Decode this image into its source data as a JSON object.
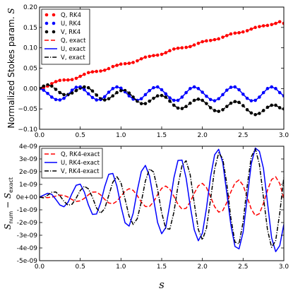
{
  "chart_data": [
    {
      "type": "line",
      "ylabel": "Normalized Stokes param. S",
      "xlim": [
        0.0,
        3.0
      ],
      "ylim": [
        -0.1,
        0.2
      ],
      "x_ticks": [
        "0.0",
        "0.5",
        "1.0",
        "1.5",
        "2.0",
        "2.5",
        "3.0"
      ],
      "y_ticks": [
        "−0.10",
        "−0.05",
        "0.00",
        "0.05",
        "0.10",
        "0.15",
        "0.20"
      ],
      "legend_position": "top-left",
      "grid": false,
      "series": [
        {
          "name": "Q, RK4",
          "style": "dots",
          "color": "#ff0000",
          "x": [
            0.0,
            0.05,
            0.1,
            0.15,
            0.2,
            0.25,
            0.3,
            0.35,
            0.4,
            0.45,
            0.5,
            0.55,
            0.6,
            0.65,
            0.7,
            0.75,
            0.8,
            0.85,
            0.9,
            0.95,
            1.0,
            1.05,
            1.1,
            1.15,
            1.2,
            1.25,
            1.3,
            1.35,
            1.4,
            1.45,
            1.5,
            1.55,
            1.6,
            1.65,
            1.7,
            1.75,
            1.8,
            1.85,
            1.9,
            1.95,
            2.0,
            2.05,
            2.1,
            2.15,
            2.2,
            2.25,
            2.3,
            2.35,
            2.4,
            2.45,
            2.5,
            2.55,
            2.6,
            2.65,
            2.7,
            2.75,
            2.8,
            2.85,
            2.9,
            2.95,
            3.0
          ],
          "y": [
            0.0,
            0.002,
            0.006,
            0.012,
            0.017,
            0.02,
            0.021,
            0.021,
            0.022,
            0.025,
            0.03,
            0.035,
            0.039,
            0.041,
            0.042,
            0.043,
            0.045,
            0.049,
            0.054,
            0.057,
            0.06,
            0.061,
            0.062,
            0.064,
            0.068,
            0.073,
            0.077,
            0.079,
            0.081,
            0.082,
            0.084,
            0.088,
            0.093,
            0.097,
            0.099,
            0.1,
            0.101,
            0.103,
            0.107,
            0.111,
            0.115,
            0.117,
            0.118,
            0.12,
            0.122,
            0.126,
            0.13,
            0.134,
            0.136,
            0.137,
            0.139,
            0.142,
            0.146,
            0.15,
            0.152,
            0.154,
            0.155,
            0.157,
            0.16,
            0.164,
            0.16
          ]
        },
        {
          "name": "U, RK4",
          "style": "dots",
          "color": "#0000ff",
          "x": [
            0.0,
            0.05,
            0.1,
            0.15,
            0.2,
            0.25,
            0.3,
            0.35,
            0.4,
            0.45,
            0.5,
            0.55,
            0.6,
            0.65,
            0.7,
            0.75,
            0.8,
            0.85,
            0.9,
            0.95,
            1.0,
            1.05,
            1.1,
            1.15,
            1.2,
            1.25,
            1.3,
            1.35,
            1.4,
            1.45,
            1.5,
            1.55,
            1.6,
            1.65,
            1.7,
            1.75,
            1.8,
            1.85,
            1.9,
            1.95,
            2.0,
            2.05,
            2.1,
            2.15,
            2.2,
            2.25,
            2.3,
            2.35,
            2.4,
            2.45,
            2.5,
            2.55,
            2.6,
            2.65,
            2.7,
            2.75,
            2.8,
            2.85,
            2.9,
            2.95,
            3.0
          ],
          "y": [
            0.0,
            -0.004,
            -0.012,
            -0.021,
            -0.027,
            -0.028,
            -0.024,
            -0.015,
            -0.004,
            0.003,
            0.004,
            -0.003,
            -0.013,
            -0.022,
            -0.028,
            -0.027,
            -0.02,
            -0.009,
            0.0,
            0.004,
            0.001,
            -0.008,
            -0.018,
            -0.026,
            -0.029,
            -0.025,
            -0.015,
            -0.005,
            0.002,
            0.004,
            -0.003,
            -0.013,
            -0.023,
            -0.029,
            -0.029,
            -0.021,
            -0.01,
            0.0,
            0.004,
            0.0,
            -0.009,
            -0.019,
            -0.027,
            -0.03,
            -0.025,
            -0.015,
            -0.004,
            0.003,
            0.004,
            -0.003,
            -0.014,
            -0.024,
            -0.03,
            -0.029,
            -0.021,
            -0.01,
            0.0,
            0.004,
            0.0,
            -0.01,
            -0.018
          ]
        },
        {
          "name": "V, RK4",
          "style": "dots",
          "color": "#000000",
          "x": [
            0.0,
            0.05,
            0.1,
            0.15,
            0.2,
            0.25,
            0.3,
            0.35,
            0.4,
            0.45,
            0.5,
            0.55,
            0.6,
            0.65,
            0.7,
            0.75,
            0.8,
            0.85,
            0.9,
            0.95,
            1.0,
            1.05,
            1.1,
            1.15,
            1.2,
            1.25,
            1.3,
            1.35,
            1.4,
            1.45,
            1.5,
            1.55,
            1.6,
            1.65,
            1.7,
            1.75,
            1.8,
            1.85,
            1.9,
            1.95,
            2.0,
            2.05,
            2.1,
            2.15,
            2.2,
            2.25,
            2.3,
            2.35,
            2.4,
            2.45,
            2.5,
            2.55,
            2.6,
            2.65,
            2.7,
            2.75,
            2.8,
            2.85,
            2.9,
            2.95,
            3.0
          ],
          "y": [
            0.0,
            0.006,
            0.009,
            0.006,
            -0.002,
            -0.01,
            -0.015,
            -0.015,
            -0.011,
            -0.005,
            0.001,
            0.004,
            0.002,
            -0.006,
            -0.016,
            -0.025,
            -0.028,
            -0.025,
            -0.018,
            -0.01,
            -0.005,
            -0.005,
            -0.011,
            -0.021,
            -0.031,
            -0.037,
            -0.037,
            -0.031,
            -0.024,
            -0.018,
            -0.017,
            -0.021,
            -0.031,
            -0.041,
            -0.048,
            -0.049,
            -0.044,
            -0.036,
            -0.029,
            -0.026,
            -0.029,
            -0.037,
            -0.047,
            -0.054,
            -0.056,
            -0.052,
            -0.044,
            -0.036,
            -0.032,
            -0.034,
            -0.042,
            -0.052,
            -0.06,
            -0.064,
            -0.061,
            -0.054,
            -0.046,
            -0.041,
            -0.041,
            -0.047,
            -0.05
          ]
        },
        {
          "name": "Q, exact",
          "style": "dashed",
          "color": "#ff0000",
          "same_as_series": 0
        },
        {
          "name": "U, exact",
          "style": "solid",
          "color": "#0000ff",
          "same_as_series": 1
        },
        {
          "name": "V, exact",
          "style": "dashdot",
          "color": "#000000",
          "same_as_series": 2
        }
      ]
    },
    {
      "type": "line",
      "xlabel": "s",
      "ylabel": "S_num − S_exact",
      "xlim": [
        0.0,
        3.0
      ],
      "ylim": [
        -5e-09,
        4e-09
      ],
      "x_ticks": [
        "0.0",
        "0.5",
        "1.0",
        "1.5",
        "2.0",
        "2.5",
        "3.0"
      ],
      "y_ticks": [
        "-5e-09",
        "-4e-09",
        "-3e-09",
        "-2e-09",
        "-1e-09",
        "0e+00",
        "1e-09",
        "2e-09",
        "3e-09",
        "4e-09"
      ],
      "legend_position": "top-left",
      "grid": false,
      "series": [
        {
          "name": "Q, RK4-exact",
          "style": "dashed",
          "color": "#ff0000",
          "x": [
            0.0,
            0.05,
            0.1,
            0.15,
            0.2,
            0.25,
            0.3,
            0.35,
            0.4,
            0.45,
            0.5,
            0.55,
            0.6,
            0.65,
            0.7,
            0.75,
            0.8,
            0.85,
            0.9,
            0.95,
            1.0,
            1.05,
            1.1,
            1.15,
            1.2,
            1.25,
            1.3,
            1.35,
            1.4,
            1.45,
            1.5,
            1.55,
            1.6,
            1.65,
            1.7,
            1.75,
            1.8,
            1.85,
            1.9,
            1.95,
            2.0,
            2.05,
            2.1,
            2.15,
            2.2,
            2.25,
            2.3,
            2.35,
            2.4,
            2.45,
            2.5,
            2.55,
            2.6,
            2.65,
            2.7,
            2.75,
            2.8,
            2.85,
            2.9,
            2.95,
            3.0
          ],
          "y": [
            0.0,
            -2e-11,
            -4e-11,
            0.0,
            8e-11,
            1.5e-10,
            1.3e-10,
            0.0,
            -2e-10,
            -3.4e-10,
            -3e-10,
            -1e-10,
            1.8e-10,
            3.9e-10,
            4e-10,
            1.7e-10,
            -1.8e-10,
            -4.6e-10,
            -5.3e-10,
            -3.2e-10,
            6e-11,
            4.7e-10,
            6.6e-10,
            5.3e-10,
            1.2e-10,
            -3.9e-10,
            -7.4e-10,
            -7.4e-10,
            -3.7e-10,
            1.9e-10,
            6.9e-10,
            8.7e-10,
            6.3e-10,
            6e-11,
            -5.7e-10,
            -9.5e-10,
            -8.8e-10,
            -3.8e-10,
            3e-10,
            8.9e-10,
            1.08e-09,
            7.5e-10,
            3e-11,
            -7.5e-10,
            -1.18e-09,
            -1.06e-09,
            -4.3e-10,
            4.1e-10,
            1.11e-09,
            1.35e-09,
            9.3e-10,
            1e-11,
            -9.4e-10,
            -1.46e-09,
            -1.3e-09,
            -4.9e-10,
            5.6e-10,
            1.38e-09,
            1.6e-09,
            1.06e-09,
            -1e-10
          ]
        },
        {
          "name": "U, RK4-exact",
          "style": "solid",
          "color": "#0000ff",
          "x": [
            0.0,
            0.05,
            0.1,
            0.15,
            0.2,
            0.25,
            0.3,
            0.35,
            0.4,
            0.45,
            0.5,
            0.55,
            0.6,
            0.65,
            0.7,
            0.75,
            0.8,
            0.85,
            0.9,
            0.95,
            1.0,
            1.05,
            1.1,
            1.15,
            1.2,
            1.25,
            1.3,
            1.35,
            1.4,
            1.45,
            1.5,
            1.55,
            1.6,
            1.65,
            1.7,
            1.75,
            1.8,
            1.85,
            1.9,
            1.95,
            2.0,
            2.05,
            2.1,
            2.15,
            2.2,
            2.25,
            2.3,
            2.35,
            2.4,
            2.45,
            2.5,
            2.55,
            2.6,
            2.65,
            2.7,
            2.75,
            2.8,
            2.85,
            2.9,
            2.95,
            3.0
          ],
          "y": [
            0.0,
            1.5e-10,
            3e-10,
            2.2e-10,
            -1.8e-10,
            -6.2e-10,
            -7.6e-10,
            -4.1e-10,
            3e-10,
            9.3e-10,
            1.02e-09,
            4e-10,
            -6.1e-10,
            -1.36e-09,
            -1.33e-09,
            -4.6e-10,
            8.2e-10,
            1.79e-09,
            1.86e-09,
            8.7e-10,
            -7.1e-10,
            -2.02e-09,
            -2.28e-09,
            -1.27e-09,
            5.1e-10,
            2.01e-09,
            2.49e-09,
            1.67e-09,
            -1.4e-10,
            -2e-09,
            -2.88e-09,
            -2.4e-09,
            -5.7e-10,
            1.51e-09,
            2.88e-09,
            2.91e-09,
            1.5e-09,
            -6.8e-10,
            -2.57e-09,
            -3.43e-09,
            -2.84e-09,
            -8.8e-10,
            1.59e-09,
            3.32e-09,
            3.76e-09,
            2.72e-09,
            3e-10,
            -2.2e-09,
            -3.88e-09,
            -4.07e-09,
            -2.77e-09,
            -1e-10,
            2.61e-09,
            3.86e-09,
            3.6e-09,
            2.25e-09,
            -4.7e-10,
            -3.2e-09,
            -4.29e-09,
            -3.82e-09,
            -2.15e-09
          ]
        },
        {
          "name": "V, RK4-exact",
          "style": "dashdot",
          "color": "#000000",
          "x": [
            0.0,
            0.05,
            0.1,
            0.15,
            0.2,
            0.25,
            0.3,
            0.35,
            0.4,
            0.45,
            0.5,
            0.55,
            0.6,
            0.65,
            0.7,
            0.75,
            0.8,
            0.85,
            0.9,
            0.95,
            1.0,
            1.05,
            1.1,
            1.15,
            1.2,
            1.25,
            1.3,
            1.35,
            1.4,
            1.45,
            1.5,
            1.55,
            1.6,
            1.65,
            1.7,
            1.75,
            1.8,
            1.85,
            1.9,
            1.95,
            2.0,
            2.05,
            2.1,
            2.15,
            2.2,
            2.25,
            2.3,
            2.35,
            2.4,
            2.45,
            2.5,
            2.55,
            2.6,
            2.65,
            2.7,
            2.75,
            2.8,
            2.85,
            2.9,
            2.95,
            3.0
          ],
          "y": [
            0.0,
            -6e-11,
            1.5e-10,
            3.8e-10,
            4e-10,
            1.1e-10,
            -3.3e-10,
            -6.4e-10,
            -5.6e-10,
            -8e-11,
            5.2e-10,
            8.5e-10,
            6.5e-10,
            -2e-11,
            -8.6e-10,
            -1.26e-09,
            -9.1e-10,
            1.4e-10,
            1.17e-09,
            1.6e-09,
            1.13e-09,
            -1.5e-10,
            -1.5e-09,
            -2.15e-09,
            -1.7e-09,
            -3.7e-10,
            1.27e-09,
            2.21e-09,
            1.98e-09,
            6e-10,
            -1.23e-09,
            -2.47e-09,
            -2.52e-09,
            -1.2e-09,
            8.7e-10,
            2.49e-09,
            2.86e-09,
            1.76e-09,
            -4.7e-10,
            -2.55e-09,
            -3.36e-09,
            -2.45e-09,
            -2e-10,
            2.2e-09,
            3.48e-09,
            3.02e-09,
            1.03e-09,
            -1.66e-09,
            -3.54e-09,
            -3.67e-09,
            -1.95e-09,
            8.6e-10,
            3.16e-09,
            3.8e-09,
            2.59e-09,
            -3e-11,
            -2.59e-09,
            -3.95e-09,
            -3.42e-09,
            -1.27e-09,
            1.52e-09
          ]
        }
      ]
    }
  ]
}
